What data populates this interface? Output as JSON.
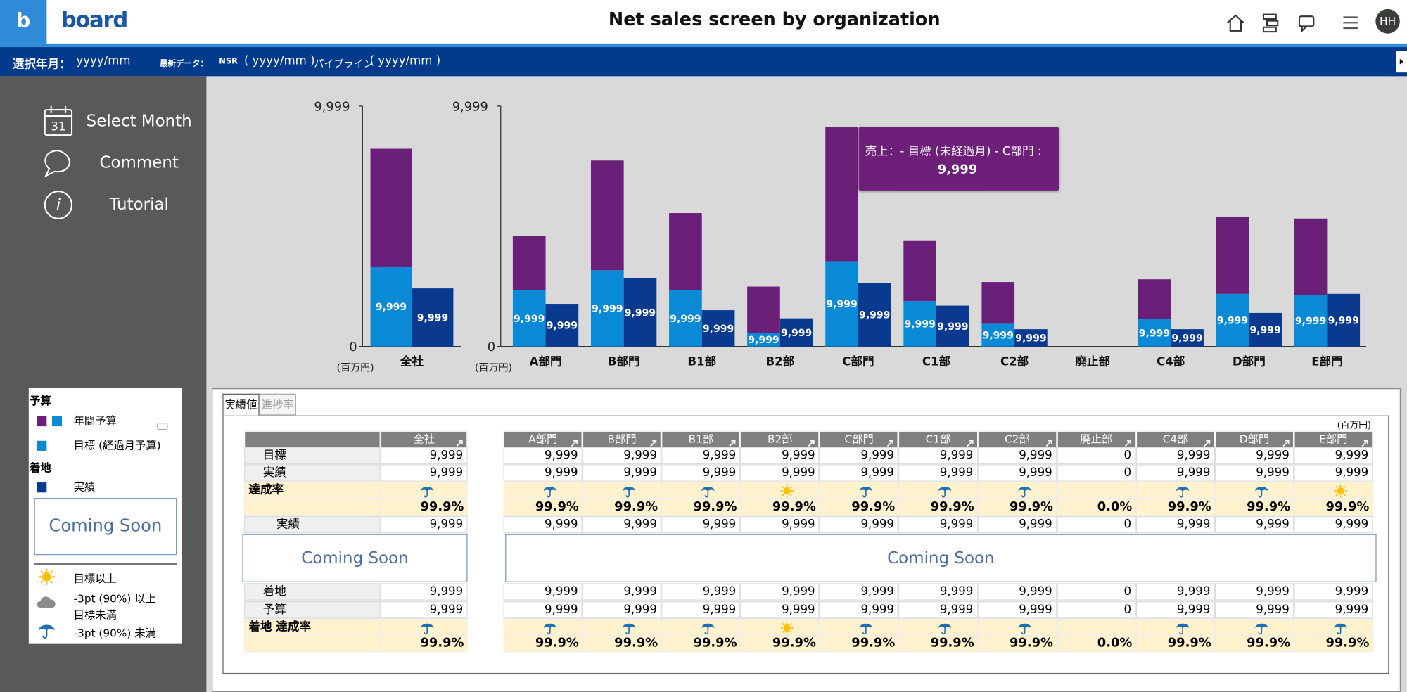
{
  "header": {
    "logo_mark": "b",
    "logo": "board",
    "title": "Net sales screen by organization",
    "user": "HH"
  },
  "infobar": {
    "month_label": "選択年月：",
    "month_value": "yyyy/mm",
    "latest_label": "最新データ：",
    "nsr_label": "NSR",
    "nsr_value": "( yyyy/mm )",
    "pipeline_label": "パイプライン",
    "pipeline_value": "( yyyy/mm )"
  },
  "sidebar": {
    "calendar_day": "31",
    "menu": [
      "Select Month",
      "Comment",
      "Tutorial"
    ]
  },
  "legend": {
    "budget_heading": "予算",
    "landing_heading": "着地",
    "placeholder": "Coming Soon",
    "status": [
      "目標以上",
      "-3pt (90%) 以上",
      "目標未満",
      "-3pt (90%) 未満"
    ]
  },
  "tooltip": {
    "title": "売上：- 目標 (未経過月) - C部門 :",
    "value": "9,999"
  },
  "chart_data": [
    {
      "type": "bar",
      "unit": "(百万円)",
      "categories": [
        "全社"
      ],
      "ylim": [
        0,
        9999
      ],
      "yticks": [
        0,
        {
          "value": 9999,
          "label": "9,999"
        }
      ],
      "series": [
        {
          "name": "目標 (経過月予算)",
          "color": "#0a8ad6",
          "values": [
            3320
          ],
          "value_labels": [
            "9,999"
          ]
        },
        {
          "name": "年間予算",
          "color": "#6a1f78",
          "values": [
            4905
          ]
        },
        {
          "name": "実績",
          "color": "#0a3a8f",
          "values": [
            2415
          ],
          "value_labels": [
            "9,999"
          ]
        }
      ]
    },
    {
      "type": "bar",
      "unit": "(百万円)",
      "categories": [
        "A部門",
        "B部門",
        "B1部",
        "B2部",
        "C部門",
        "C1部",
        "C2部",
        "廃止部",
        "C4部",
        "D部門",
        "E部門"
      ],
      "ylim": [
        0,
        9999
      ],
      "yticks": [
        0,
        {
          "value": 9999,
          "label": "9,999"
        }
      ],
      "series": [
        {
          "name": "目標 (経過月予算)",
          "color": "#0a8ad6",
          "values": [
            2340,
            3170,
            2340,
            566,
            3547,
            1887,
            943,
            0,
            1132,
            2188,
            2151
          ],
          "value_labels": [
            "9,999",
            "9,999",
            "9,999",
            "9,999",
            "9,999",
            "9,999",
            "9,999",
            null,
            "9,999",
            "9,999",
            "9,999"
          ]
        },
        {
          "name": "年間予算",
          "color": "#6a1f78",
          "values": [
            2264,
            4566,
            3207,
            1924,
            5584,
            2528,
            1736,
            0,
            1660,
            3207,
            3170
          ]
        },
        {
          "name": "実績",
          "color": "#0a3a8f",
          "values": [
            1773,
            2830,
            1509,
            1170,
            2641,
            1698,
            717,
            0,
            717,
            1396,
            2189
          ],
          "value_labels": [
            "9,999",
            "9,999",
            "9,999",
            "9,999",
            "9,999",
            "9,999",
            "9,999",
            null,
            "9,999",
            "9,999",
            "9,999"
          ]
        }
      ]
    }
  ],
  "table": {
    "tabs": [
      "実績値",
      "進捗率"
    ],
    "unit": "(百万円)",
    "placeholders": [
      "Coming Soon",
      "Coming Soon"
    ],
    "columns": [
      "全社",
      "A部門",
      "B部門",
      "B1部",
      "B2部",
      "C部門",
      "C1部",
      "C2部",
      "廃止部",
      "C4部",
      "D部門",
      "E部門"
    ],
    "rows": [
      {
        "label": "目標",
        "cells": [
          "9,999",
          "9,999",
          "9,999",
          "9,999",
          "9,999",
          "9,999",
          "9,999",
          "9,999",
          "0",
          "9,999",
          "9,999",
          "9,999"
        ]
      },
      {
        "label": "実績",
        "cells": [
          "9,999",
          "9,999",
          "9,999",
          "9,999",
          "9,999",
          "9,999",
          "9,999",
          "9,999",
          "0",
          "9,999",
          "9,999",
          "9,999"
        ]
      },
      {
        "label": "達成率",
        "rates": [
          "99.9%",
          "99.9%",
          "99.9%",
          "99.9%",
          "99.9%",
          "99.9%",
          "99.9%",
          "99.9%",
          "0.0%",
          "99.9%",
          "99.9%",
          "99.9%"
        ]
      },
      {
        "label": "実績",
        "cells": [
          "9,999",
          "9,999",
          "9,999",
          "9,999",
          "9,999",
          "9,999",
          "9,999",
          "9,999",
          "0",
          "9,999",
          "9,999",
          "9,999"
        ]
      },
      {
        "label": "着地",
        "cells": [
          "9,999",
          "9,999",
          "9,999",
          "9,999",
          "9,999",
          "9,999",
          "9,999",
          "9,999",
          "0",
          "9,999",
          "9,999",
          "9,999"
        ]
      },
      {
        "label": "予算",
        "cells": [
          "9,999",
          "9,999",
          "9,999",
          "9,999",
          "9,999",
          "9,999",
          "9,999",
          "9,999",
          "0",
          "9,999",
          "9,999",
          "9,999"
        ]
      },
      {
        "label": "着地 達成率",
        "rates": [
          "99.9%",
          "99.9%",
          "99.9%",
          "99.9%",
          "99.9%",
          "99.9%",
          "99.9%",
          "99.9%",
          "0.0%",
          "99.9%",
          "99.9%",
          "99.9%"
        ]
      }
    ]
  }
}
